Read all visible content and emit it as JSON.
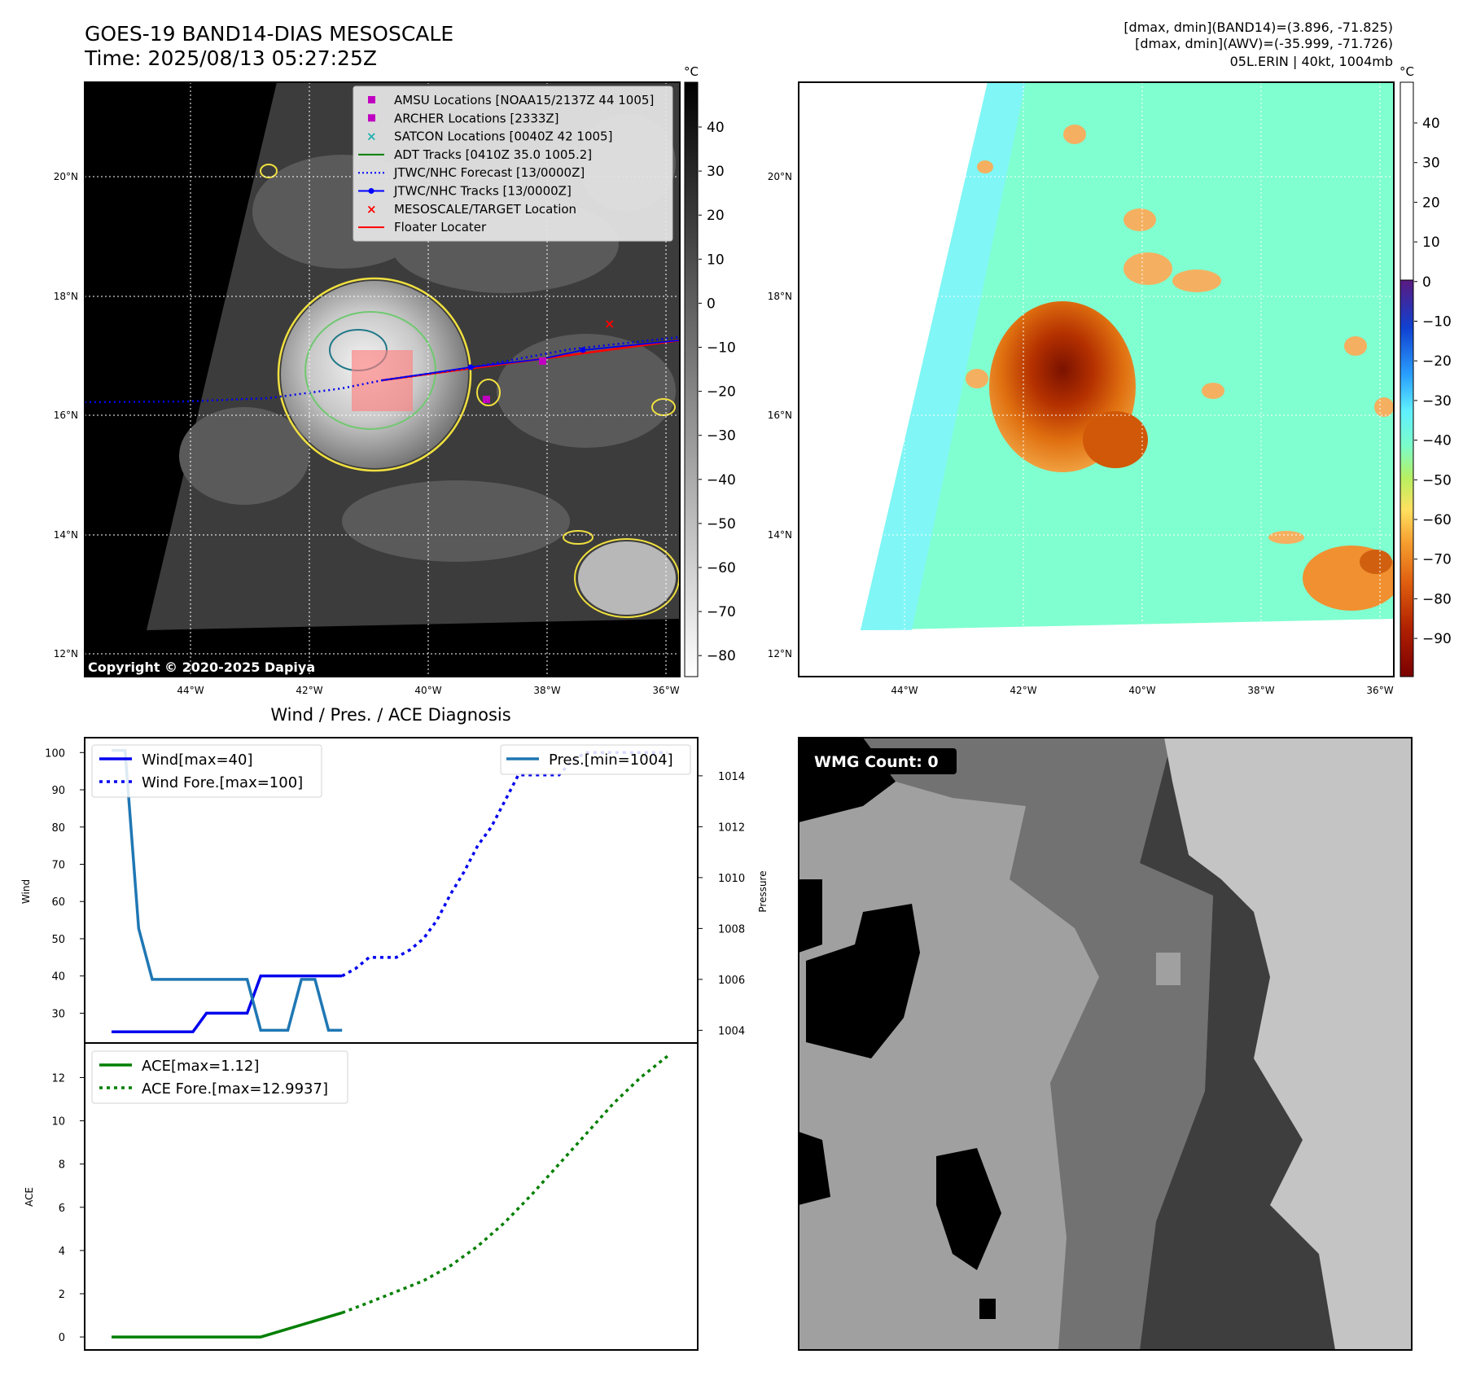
{
  "header": {
    "title_line1": "GOES-19 BAND14-DIAS MESOSCALE",
    "title_line2": "Time: 2025/08/13 05:27:25Z",
    "stats_line1": "[dmax, dmin](BAND14)=(3.896, -71.825)",
    "stats_line2": "[dmax, dmin](AWV)=(-35.999, -71.726)",
    "stats_line3": "05L.ERIN | 40kt, 1004mb"
  },
  "map_ir": {
    "lat_labels": [
      "20°N",
      "18°N",
      "16°N",
      "14°N",
      "12°N"
    ],
    "lon_labels": [
      "44°W",
      "42°W",
      "40°W",
      "38°W",
      "36°W"
    ],
    "copyright": "Copyright © 2020-2025 Dapiya",
    "legend": [
      {
        "label": "AMSU Locations [NOAA15/2137Z 44 1005]",
        "color": "#c000c0",
        "marker": "square"
      },
      {
        "label": "ARCHER Locations [2333Z]",
        "color": "#c000c0",
        "marker": "square"
      },
      {
        "label": "SATCON Locations [0040Z 42 1005]",
        "color": "#20b0b0",
        "marker": "x"
      },
      {
        "label": "ADT Tracks [0410Z 35.0 1005.2]",
        "color": "#008000",
        "marker": "line"
      },
      {
        "label": "JTWC/NHC Forecast [13/0000Z]",
        "color": "#0000ff",
        "marker": "dotted"
      },
      {
        "label": "JTWC/NHC Tracks [13/0000Z]",
        "color": "#0000ff",
        "marker": "line-dot"
      },
      {
        "label": "MESOSCALE/TARGET Location",
        "color": "#ff0000",
        "marker": "x"
      },
      {
        "label": "Floater Locater",
        "color": "#ff0000",
        "marker": "line"
      }
    ],
    "colorbar_unit": "°C",
    "colorbar_ticks": [
      "40",
      "30",
      "20",
      "10",
      "0",
      "−10",
      "−20",
      "−30",
      "−40",
      "−50",
      "−60",
      "−70",
      "−80"
    ]
  },
  "map_awv": {
    "lat_labels": [
      "20°N",
      "18°N",
      "16°N",
      "14°N",
      "12°N"
    ],
    "lon_labels": [
      "44°W",
      "42°W",
      "40°W",
      "38°W",
      "36°W"
    ],
    "colorbar_unit": "°C",
    "colorbar_ticks": [
      "40",
      "30",
      "20",
      "10",
      "0",
      "−10",
      "−20",
      "−30",
      "−40",
      "−50",
      "−60",
      "−70",
      "−80",
      "−90"
    ]
  },
  "diagnosis": {
    "title": "Wind / Pres. / ACE Diagnosis",
    "wind_ylabel": "Wind",
    "pres_ylabel": "Pressure",
    "ace_ylabel": "ACE",
    "wind_ticks": [
      "100",
      "90",
      "80",
      "70",
      "60",
      "50",
      "40",
      "30"
    ],
    "pres_ticks": [
      "1014",
      "1012",
      "1010",
      "1008",
      "1006",
      "1004"
    ],
    "ace_ticks": [
      "12",
      "10",
      "8",
      "6",
      "4",
      "2",
      "0"
    ],
    "legend_wind": "Wind[max=40]",
    "legend_wind_fore": "Wind Fore.[max=100]",
    "legend_pres": "Pres.[min=1004]",
    "legend_ace": "ACE[max=1.12]",
    "legend_ace_fore": "ACE Fore.[max=12.9937]"
  },
  "wmg": {
    "label": "WMG Count: 0"
  },
  "chart_data": [
    {
      "type": "line",
      "title": "Wind / Pres. / ACE Diagnosis",
      "ylabel": "Wind",
      "ylim": [
        22,
        104
      ],
      "series": [
        {
          "name": "Wind[max=40]",
          "style": "solid",
          "color": "#0000ee",
          "x": [
            0,
            1,
            2,
            3,
            4,
            5,
            6,
            7,
            8,
            9,
            10,
            11,
            12,
            13,
            14,
            15,
            16,
            17
          ],
          "values": [
            25,
            25,
            25,
            25,
            25,
            25,
            25,
            30,
            30,
            30,
            30,
            40,
            40,
            40,
            40,
            40,
            40,
            40
          ]
        },
        {
          "name": "Wind Fore.[max=100]",
          "style": "dotted",
          "color": "#0000ee",
          "x": [
            17,
            18,
            19,
            20,
            21,
            22,
            23,
            24,
            25,
            26,
            27,
            28,
            29,
            30,
            31,
            32,
            33,
            34,
            35,
            36,
            37,
            38,
            39,
            40,
            41
          ],
          "values": [
            40,
            42,
            45,
            45,
            45,
            47,
            50,
            55,
            62,
            68,
            75,
            80,
            87,
            94,
            94,
            94,
            94,
            98,
            100,
            100,
            100,
            100,
            100,
            100,
            100
          ]
        },
        {
          "name": "Pres.[min=1004]",
          "style": "solid",
          "color": "#1f77b4",
          "axis": "right",
          "ylim": [
            1003.5,
            1015.5
          ],
          "x": [
            0,
            1,
            2,
            3,
            4,
            5,
            6,
            7,
            8,
            9,
            10,
            11,
            12,
            13,
            14,
            15,
            16,
            17
          ],
          "values": [
            1015,
            1015,
            1008,
            1006,
            1006,
            1006,
            1006,
            1006,
            1006,
            1006,
            1006,
            1004,
            1004,
            1004,
            1006,
            1006,
            1004,
            1004
          ]
        }
      ]
    },
    {
      "type": "line",
      "ylabel": "ACE",
      "ylim": [
        -0.6,
        13.6
      ],
      "series": [
        {
          "name": "ACE[max=1.12]",
          "style": "solid",
          "color": "#007f00",
          "x": [
            0,
            11,
            17
          ],
          "values": [
            0,
            0,
            1.12
          ]
        },
        {
          "name": "ACE Fore.[max=12.9937]",
          "style": "dotted",
          "color": "#007f00",
          "x": [
            17,
            19,
            21,
            23,
            25,
            27,
            29,
            31,
            33,
            35,
            37,
            39,
            41
          ],
          "values": [
            1.12,
            1.6,
            2.1,
            2.6,
            3.3,
            4.2,
            5.3,
            6.6,
            8.0,
            9.4,
            10.8,
            12.0,
            12.9937
          ]
        }
      ]
    }
  ]
}
